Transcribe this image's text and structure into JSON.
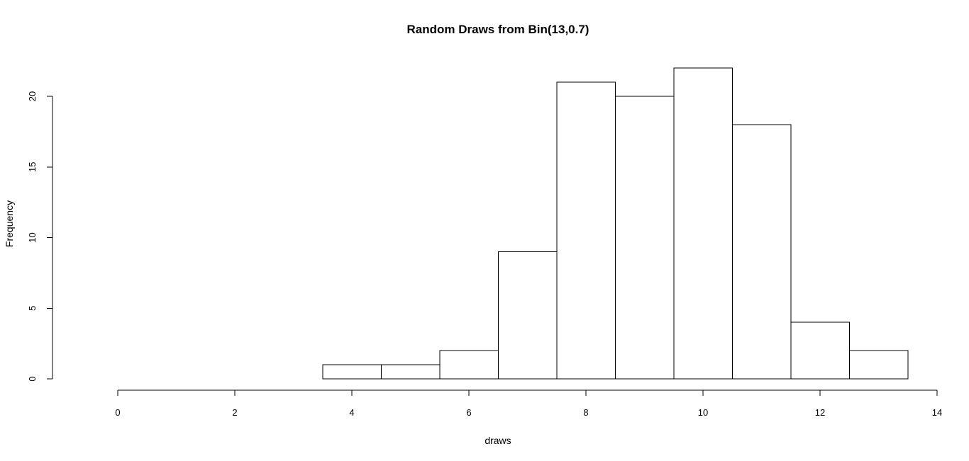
{
  "chart_data": {
    "type": "bar",
    "title": "Random Draws from Bin(13,0.7)",
    "xlabel": "draws",
    "ylabel": "Frequency",
    "xlim": [
      0,
      14
    ],
    "ylim": [
      0,
      22
    ],
    "bin_edges": [
      -0.5,
      0.5,
      1.5,
      2.5,
      3.5,
      4.5,
      5.5,
      6.5,
      7.5,
      8.5,
      9.5,
      10.5,
      11.5,
      12.5,
      13.5
    ],
    "values": [
      0,
      0,
      0,
      0,
      1,
      1,
      2,
      9,
      21,
      20,
      22,
      18,
      4,
      2
    ],
    "x_ticks": [
      0,
      2,
      4,
      6,
      8,
      10,
      12,
      14
    ],
    "y_ticks": [
      0,
      5,
      10,
      15,
      20
    ],
    "grid": false,
    "legend": "none",
    "colors": {
      "bar_fill": "#ffffff",
      "bar_stroke": "#000000"
    }
  }
}
